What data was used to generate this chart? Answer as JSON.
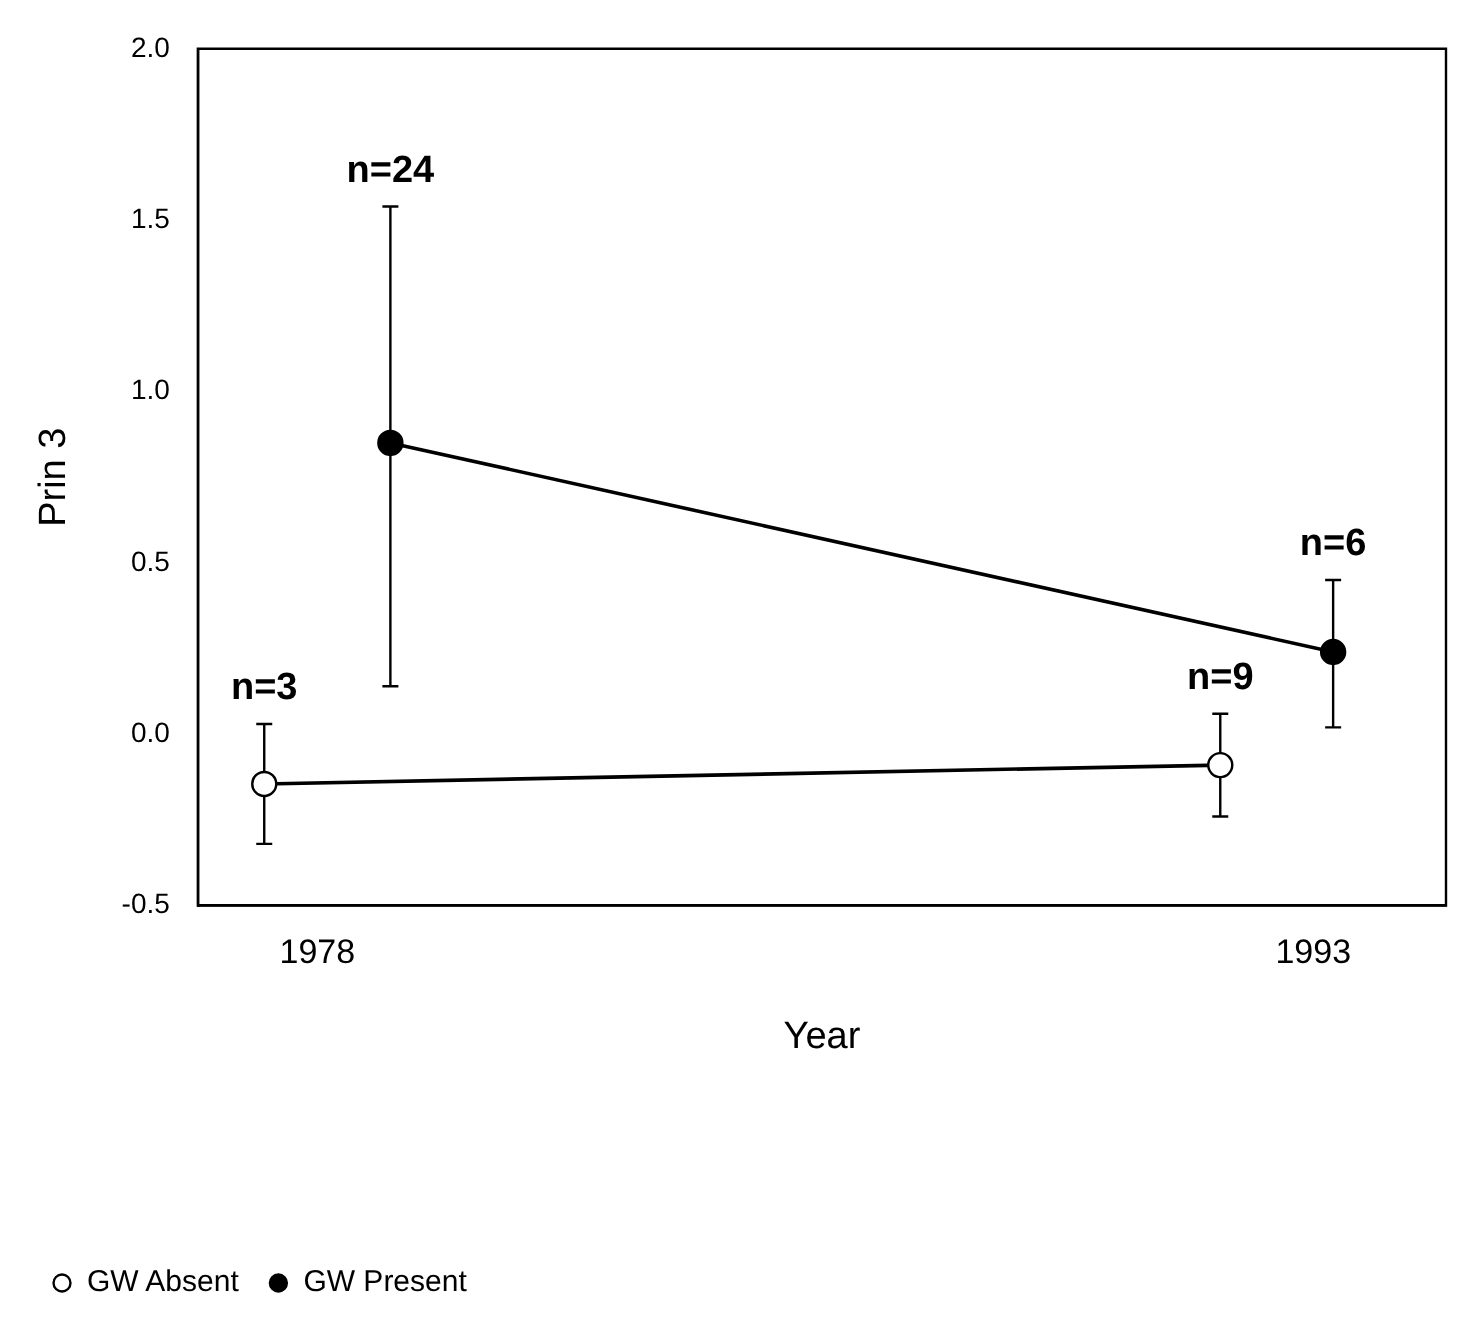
{
  "chart_data": {
    "type": "line",
    "xlabel": "Year",
    "ylabel": "Prin 3",
    "xlim": [
      1976.2,
      1995
    ],
    "xticks": [
      1978,
      1993
    ],
    "ylim": [
      -0.5,
      2.0
    ],
    "yticks": [
      {
        "value": -0.5,
        "label": "-0.5"
      },
      {
        "value": 0,
        "label": "0.0"
      },
      {
        "value": 0.5,
        "label": "0.5"
      },
      {
        "value": 1,
        "label": "1.0"
      },
      {
        "value": 1.5,
        "label": "1.5"
      },
      {
        "value": 2,
        "label": "2.0"
      }
    ],
    "series": [
      {
        "name": "GW Absent",
        "color": "#000000",
        "x": [
          1977.2,
          1991.6
        ],
        "values": [
          -0.145,
          -0.09
        ],
        "errors": [
          [
            -0.32,
            0.03
          ],
          [
            -0.24,
            0.06
          ]
        ]
      },
      {
        "name": "GW Present",
        "color": "#000000",
        "x": [
          1979.1,
          1993.3
        ],
        "values": [
          0.85,
          0.24
        ],
        "errors": [
          [
            0.14,
            1.54
          ],
          [
            0.02,
            0.45
          ]
        ]
      }
    ],
    "annotations": [
      {
        "text": "n=3",
        "x": 1977.2,
        "y": 0.03
      },
      {
        "text": "n=24",
        "x": 1979.1,
        "y": 1.54
      },
      {
        "text": "n=9",
        "x": 1991.6,
        "y": 0.06
      },
      {
        "text": "n=6",
        "x": 1993.3,
        "y": 0.45
      }
    ],
    "marker": "circle",
    "line_style": "solid",
    "grid": false,
    "legend": "bottom left"
  }
}
